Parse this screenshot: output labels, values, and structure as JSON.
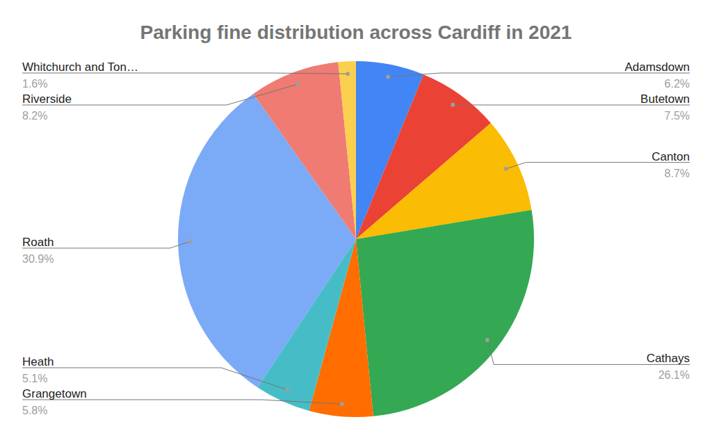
{
  "chart_data": {
    "type": "pie",
    "title": "Parking fine distribution across Cardiff in 2021",
    "categories": [
      "Adamsdown",
      "Butetown",
      "Canton",
      "Cathays",
      "Grangetown",
      "Heath",
      "Roath",
      "Riverside",
      "Whitchurch and Ton…"
    ],
    "values": [
      6.2,
      7.5,
      8.7,
      26.1,
      5.8,
      5.1,
      30.9,
      8.2,
      1.6
    ],
    "value_labels": [
      "6.2%",
      "7.5%",
      "8.7%",
      "26.1%",
      "5.8%",
      "5.1%",
      "30.9%",
      "8.2%",
      "1.6%"
    ],
    "colors": [
      "#4285f4",
      "#ea4335",
      "#fbbc04",
      "#34a853",
      "#ff6d01",
      "#46bdc6",
      "#7baaf7",
      "#f07b72",
      "#fcd04f"
    ],
    "data_labels": true
  }
}
